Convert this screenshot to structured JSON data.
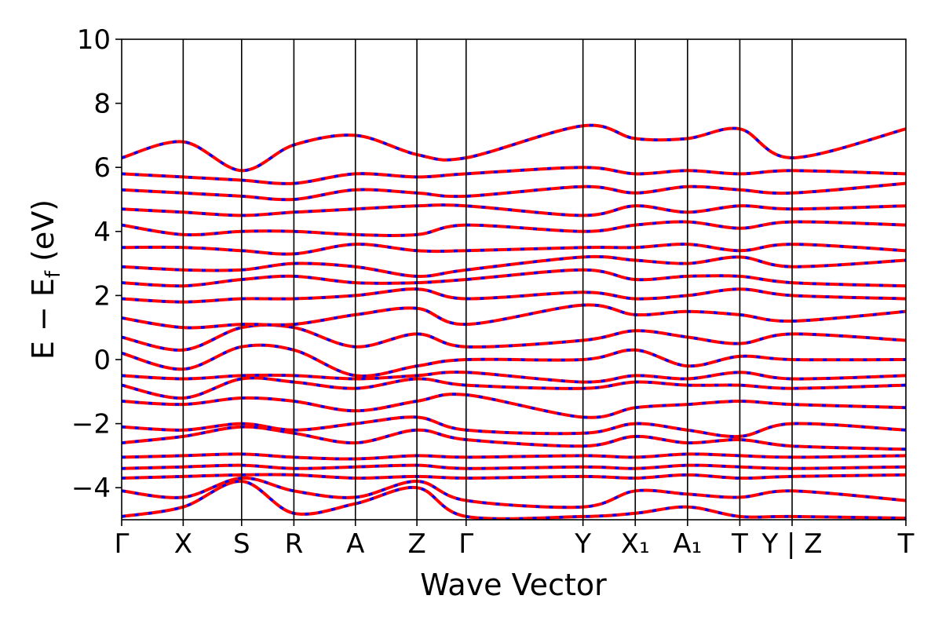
{
  "chart_data": {
    "type": "line",
    "title": "",
    "xlabel": "Wave Vector",
    "ylabel": "E − E",
    "ylabel_subscript": "f",
    "ylabel_unit": " (eV)",
    "ylim": [
      -5,
      10
    ],
    "y_ticks": [
      -4,
      -2,
      0,
      2,
      4,
      6,
      8,
      10
    ],
    "y_tick_labels": [
      "−4",
      "−2",
      "0",
      "2",
      "4",
      "6",
      "8",
      "10"
    ],
    "x_ticks": [
      0,
      1.0,
      1.95,
      2.8,
      3.8,
      4.8,
      5.6,
      7.5,
      8.35,
      9.2,
      10.05,
      10.9,
      12.75
    ],
    "x_tick_labels": [
      "Γ",
      "X",
      "S",
      "R",
      "A",
      "Z",
      "Γ",
      "Y",
      "X₁",
      "A₁",
      "T",
      "Y | Z",
      "T"
    ],
    "xlim": [
      0,
      12.75
    ],
    "grid": false,
    "series_colors": [
      "#ff0000",
      "#0000ff"
    ],
    "series_styles": [
      "solid",
      "dashed"
    ],
    "bands": [
      {
        "name": "",
        "x": [
          0,
          1.0,
          1.95,
          2.8,
          3.8,
          4.8,
          5.6,
          7.5,
          8.35,
          9.2,
          10.05,
          10.9,
          12.75
        ],
        "y": [
          -4.9,
          -4.6,
          -3.8,
          -4.8,
          -4.5,
          -4.0,
          -4.9,
          -4.9,
          -4.8,
          -4.6,
          -4.9,
          -4.9,
          -4.95
        ]
      },
      {
        "name": "",
        "x": [
          0,
          1.0,
          1.95,
          2.8,
          3.8,
          4.8,
          5.6,
          7.5,
          8.35,
          9.2,
          10.05,
          10.9,
          12.75
        ],
        "y": [
          -4.1,
          -4.3,
          -3.7,
          -4.1,
          -4.3,
          -3.8,
          -4.4,
          -4.6,
          -4.1,
          -4.2,
          -4.3,
          -4.1,
          -4.4
        ]
      },
      {
        "name": "",
        "x": [
          0,
          1.0,
          1.95,
          2.8,
          3.8,
          4.8,
          5.6,
          7.5,
          8.35,
          9.2,
          10.05,
          10.9,
          12.75
        ],
        "y": [
          -3.7,
          -3.65,
          -3.6,
          -3.6,
          -3.7,
          -3.65,
          -3.7,
          -3.65,
          -3.7,
          -3.6,
          -3.7,
          -3.65,
          -3.6
        ]
      },
      {
        "name": "",
        "x": [
          0,
          1.0,
          1.95,
          2.8,
          3.8,
          4.8,
          5.6,
          7.5,
          8.35,
          9.2,
          10.05,
          10.9,
          12.75
        ],
        "y": [
          -3.4,
          -3.35,
          -3.3,
          -3.4,
          -3.35,
          -3.3,
          -3.4,
          -3.35,
          -3.4,
          -3.3,
          -3.35,
          -3.4,
          -3.35
        ]
      },
      {
        "name": "",
        "x": [
          0,
          1.0,
          1.95,
          2.8,
          3.8,
          4.8,
          5.6,
          7.5,
          8.35,
          9.2,
          10.05,
          10.9,
          12.75
        ],
        "y": [
          -3.05,
          -3.0,
          -2.95,
          -3.05,
          -3.1,
          -3.0,
          -3.05,
          -3.0,
          -3.05,
          -2.95,
          -3.0,
          -3.05,
          -3.0
        ]
      },
      {
        "name": "",
        "x": [
          0,
          1.0,
          1.95,
          2.8,
          3.8,
          4.8,
          5.6,
          7.5,
          8.35,
          9.2,
          10.05,
          10.9,
          12.75
        ],
        "y": [
          -2.6,
          -2.4,
          -2.1,
          -2.3,
          -2.6,
          -2.2,
          -2.5,
          -2.7,
          -2.4,
          -2.6,
          -2.5,
          -2.7,
          -2.8
        ]
      },
      {
        "name": "",
        "x": [
          0,
          1.0,
          1.95,
          2.8,
          3.8,
          4.8,
          5.6,
          7.5,
          8.35,
          9.2,
          10.05,
          10.9,
          12.75
        ],
        "y": [
          -2.1,
          -2.2,
          -2.0,
          -2.2,
          -2.0,
          -1.8,
          -2.2,
          -2.3,
          -2.0,
          -2.2,
          -2.4,
          -2.0,
          -2.2
        ]
      },
      {
        "name": "",
        "x": [
          0,
          1.0,
          1.95,
          2.8,
          3.8,
          4.8,
          5.6,
          7.5,
          8.35,
          9.2,
          10.05,
          10.9,
          12.75
        ],
        "y": [
          -1.3,
          -1.4,
          -1.2,
          -1.3,
          -1.6,
          -1.3,
          -1.1,
          -1.8,
          -1.5,
          -1.4,
          -1.3,
          -1.4,
          -1.5
        ]
      },
      {
        "name": "",
        "x": [
          0,
          1.0,
          1.95,
          2.8,
          3.8,
          4.8,
          5.6,
          7.5,
          8.35,
          9.2,
          10.05,
          10.9,
          12.75
        ],
        "y": [
          -0.8,
          -1.2,
          -0.6,
          -0.7,
          -0.9,
          -0.6,
          -0.8,
          -0.9,
          -0.7,
          -0.8,
          -0.8,
          -0.9,
          -0.8
        ]
      },
      {
        "name": "",
        "x": [
          0,
          1.0,
          1.95,
          2.8,
          3.8,
          4.8,
          5.6,
          7.5,
          8.35,
          9.2,
          10.05,
          10.9,
          12.75
        ],
        "y": [
          -0.5,
          -0.6,
          -0.5,
          -0.5,
          -0.6,
          -0.5,
          -0.4,
          -0.7,
          -0.5,
          -0.6,
          -0.4,
          -0.6,
          -0.5
        ]
      },
      {
        "name": "",
        "x": [
          0,
          1.0,
          1.95,
          2.8,
          3.8,
          4.8,
          5.6,
          7.5,
          8.35,
          9.2,
          10.05,
          10.9,
          12.75
        ],
        "y": [
          0.2,
          -0.3,
          0.4,
          0.3,
          -0.5,
          -0.2,
          0.0,
          0.0,
          0.3,
          -0.2,
          0.1,
          0.0,
          0.0
        ]
      },
      {
        "name": "",
        "x": [
          0,
          1.0,
          1.95,
          2.8,
          3.8,
          4.8,
          5.6,
          7.5,
          8.35,
          9.2,
          10.05,
          10.9,
          12.75
        ],
        "y": [
          0.7,
          0.3,
          1.0,
          1.0,
          0.4,
          0.8,
          0.4,
          0.6,
          0.9,
          0.7,
          0.5,
          0.8,
          0.6
        ]
      },
      {
        "name": "",
        "x": [
          0,
          1.0,
          1.95,
          2.8,
          3.8,
          4.8,
          5.6,
          7.5,
          8.35,
          9.2,
          10.05,
          10.9,
          12.75
        ],
        "y": [
          1.3,
          1.0,
          1.1,
          1.1,
          1.4,
          1.6,
          1.1,
          1.7,
          1.4,
          1.5,
          1.4,
          1.2,
          1.5
        ]
      },
      {
        "name": "",
        "x": [
          0,
          1.0,
          1.95,
          2.8,
          3.8,
          4.8,
          5.6,
          7.5,
          8.35,
          9.2,
          10.05,
          10.9,
          12.75
        ],
        "y": [
          1.9,
          1.8,
          1.9,
          1.9,
          2.0,
          2.2,
          1.9,
          2.1,
          1.9,
          2.0,
          2.2,
          2.0,
          1.9
        ]
      },
      {
        "name": "",
        "x": [
          0,
          1.0,
          1.95,
          2.8,
          3.8,
          4.8,
          5.6,
          7.5,
          8.35,
          9.2,
          10.05,
          10.9,
          12.75
        ],
        "y": [
          2.4,
          2.3,
          2.5,
          2.6,
          2.4,
          2.4,
          2.5,
          2.8,
          2.5,
          2.6,
          2.6,
          2.4,
          2.3
        ]
      },
      {
        "name": "",
        "x": [
          0,
          1.0,
          1.95,
          2.8,
          3.8,
          4.8,
          5.6,
          7.5,
          8.35,
          9.2,
          10.05,
          10.9,
          12.75
        ],
        "y": [
          2.9,
          2.8,
          2.8,
          3.0,
          2.9,
          2.6,
          2.8,
          3.2,
          3.1,
          3.0,
          3.2,
          2.9,
          3.1
        ]
      },
      {
        "name": "",
        "x": [
          0,
          1.0,
          1.95,
          2.8,
          3.8,
          4.8,
          5.6,
          7.5,
          8.35,
          9.2,
          10.05,
          10.9,
          12.75
        ],
        "y": [
          3.5,
          3.5,
          3.4,
          3.3,
          3.6,
          3.4,
          3.4,
          3.5,
          3.5,
          3.6,
          3.4,
          3.6,
          3.4
        ]
      },
      {
        "name": "",
        "x": [
          0,
          1.0,
          1.95,
          2.8,
          3.8,
          4.8,
          5.6,
          7.5,
          8.35,
          9.2,
          10.05,
          10.9,
          12.75
        ],
        "y": [
          4.2,
          3.9,
          4.0,
          4.0,
          3.9,
          3.9,
          4.2,
          4.0,
          4.2,
          4.3,
          4.1,
          4.3,
          4.2
        ]
      },
      {
        "name": "",
        "x": [
          0,
          1.0,
          1.95,
          2.8,
          3.8,
          4.8,
          5.6,
          7.5,
          8.35,
          9.2,
          10.05,
          10.9,
          12.75
        ],
        "y": [
          4.7,
          4.6,
          4.5,
          4.6,
          4.7,
          4.8,
          4.8,
          4.5,
          4.8,
          4.6,
          4.8,
          4.7,
          4.8
        ]
      },
      {
        "name": "",
        "x": [
          0,
          1.0,
          1.95,
          2.8,
          3.8,
          4.8,
          5.6,
          7.5,
          8.35,
          9.2,
          10.05,
          10.9,
          12.75
        ],
        "y": [
          5.3,
          5.2,
          5.1,
          5.0,
          5.3,
          5.2,
          5.1,
          5.4,
          5.2,
          5.4,
          5.3,
          5.2,
          5.5
        ]
      },
      {
        "name": "",
        "x": [
          0,
          1.0,
          1.95,
          2.8,
          3.8,
          4.8,
          5.6,
          7.5,
          8.35,
          9.2,
          10.05,
          10.9,
          12.75
        ],
        "y": [
          5.8,
          5.7,
          5.6,
          5.5,
          5.8,
          5.7,
          5.8,
          6.0,
          5.8,
          5.9,
          5.8,
          5.9,
          5.8
        ]
      },
      {
        "name": "",
        "x": [
          0,
          1.0,
          1.95,
          2.8,
          3.8,
          4.8,
          5.6,
          7.5,
          8.35,
          9.2,
          10.05,
          10.9,
          12.75
        ],
        "y": [
          6.3,
          6.8,
          5.9,
          6.7,
          7.0,
          6.4,
          6.3,
          7.3,
          6.9,
          6.9,
          7.2,
          6.3,
          7.2
        ]
      }
    ]
  }
}
